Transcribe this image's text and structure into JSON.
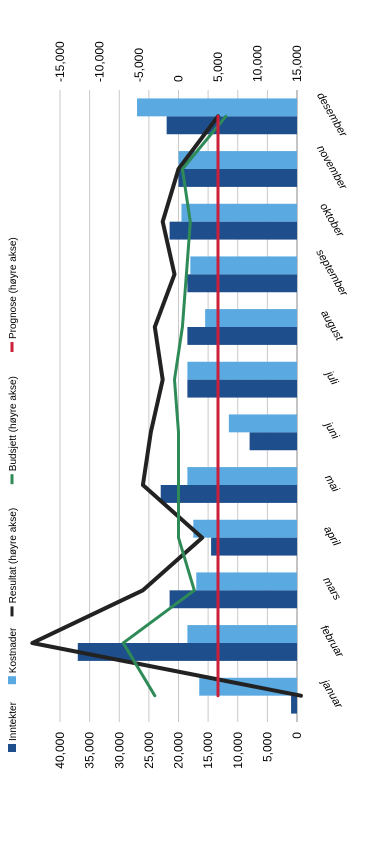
{
  "chart_data": {
    "type": "bar",
    "orientation": "rotated-90",
    "categories": [
      "januar",
      "februar",
      "mars",
      "april",
      "mai",
      "juni",
      "juli",
      "august",
      "september",
      "oktober",
      "november",
      "desember"
    ],
    "series": [
      {
        "name": "Inntekter",
        "kind": "bar",
        "axis": "left",
        "color": "#1f4e8c",
        "values": [
          1000,
          37000,
          21500,
          14500,
          23000,
          8000,
          18500,
          18500,
          18500,
          21500,
          20000,
          22000
        ]
      },
      {
        "name": "Kostnader",
        "kind": "bar",
        "axis": "left",
        "color": "#5aa9e0",
        "values": [
          16500,
          18500,
          17000,
          17500,
          18500,
          11500,
          18500,
          15500,
          18000,
          19500,
          20000,
          27000
        ]
      },
      {
        "name": "Resultat (høyre akse)",
        "kind": "line",
        "axis": "right",
        "color": "#222222",
        "values": [
          15500,
          -18500,
          -4500,
          3000,
          -4500,
          -3500,
          -2000,
          -3000,
          -500,
          -2000,
          0,
          5000
        ]
      },
      {
        "name": "Budsjett (høyre akse)",
        "kind": "line",
        "axis": "right",
        "color": "#2e8b57",
        "values": [
          -3000,
          -7000,
          2000,
          0,
          0,
          0,
          -500,
          500,
          1000,
          1500,
          500,
          6000
        ]
      },
      {
        "name": "Prognose (høyre akse)",
        "kind": "line",
        "axis": "right",
        "color": "#cc1f3a",
        "values": [
          5000,
          5000,
          5000,
          5000,
          5000,
          5000,
          5000,
          5000,
          5000,
          5000,
          5000,
          5000
        ]
      }
    ],
    "left_axis": {
      "min": 0,
      "max": 40000,
      "step": 5000,
      "tick_labels": [
        "0",
        "5,000",
        "10,000",
        "15,000",
        "20,000",
        "25,000",
        "30,000",
        "35,000",
        "40,000"
      ]
    },
    "right_axis": {
      "min": -15000,
      "max": 15000,
      "step": 5000,
      "tick_labels": [
        "15,000",
        "10,000",
        "5,000",
        "0",
        "-5,000",
        "-10,000",
        "-15,000"
      ]
    },
    "legend": {
      "placement": "left",
      "items": [
        {
          "label": "Inntekter",
          "color": "#1f4e8c",
          "kind": "box"
        },
        {
          "label": "Kostnader",
          "color": "#5aa9e0",
          "kind": "box"
        },
        {
          "label": "Resultat (høyre akse)",
          "color": "#222222",
          "kind": "line"
        },
        {
          "label": "Budsjett (høyre akse)",
          "color": "#2e8b57",
          "kind": "line"
        },
        {
          "label": "Prognose (høyre akse)",
          "color": "#cc1f3a",
          "kind": "line"
        }
      ]
    },
    "grid": true
  }
}
